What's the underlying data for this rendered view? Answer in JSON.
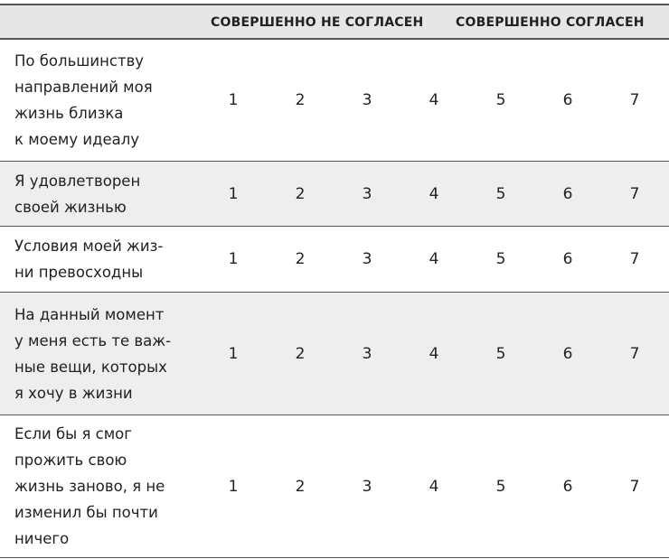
{
  "header": {
    "left_label": "СОВЕРШЕННО НЕ СОГЛАСЕН",
    "right_label": "СОВЕРШЕННО СОГЛАСЕН"
  },
  "scale": [
    "1",
    "2",
    "3",
    "4",
    "5",
    "6",
    "7"
  ],
  "rows": [
    {
      "lines": [
        "По большинству",
        "направлений моя",
        "жизнь близка",
        "к моему идеалу"
      ]
    },
    {
      "lines": [
        "Я удовлетворен",
        "своей жизнью"
      ]
    },
    {
      "lines": [
        "Условия моей жиз-",
        "ни превосходны"
      ]
    },
    {
      "lines": [
        "На данный момент",
        "у меня есть те важ-",
        "ные вещи, которых",
        "я хочу в жизни"
      ]
    },
    {
      "lines": [
        "Если бы я смог",
        "прожить свою",
        "жизнь заново, я не",
        "изменил бы почти",
        "ничего"
      ]
    }
  ],
  "colors": {
    "shade": "#eeeeee",
    "header_bg": "#e6e6e6",
    "rule": "#555555"
  }
}
